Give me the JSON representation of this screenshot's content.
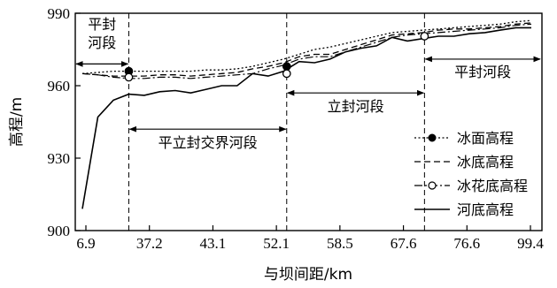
{
  "chart_data": {
    "type": "line",
    "ylabel": "高程/m",
    "xlabel": "与坝间距/km",
    "x_tick_labels": [
      "6.9",
      "37.2",
      "43.1",
      "52.1",
      "58.5",
      "67.6",
      "76.6",
      "99.4"
    ],
    "y_ticks": [
      900,
      930,
      960,
      990
    ],
    "ylim": [
      900,
      990
    ],
    "xlim": [
      0,
      29
    ],
    "grid": false,
    "legend_position": "right",
    "x": [
      0,
      1,
      2,
      3,
      4,
      5,
      6,
      7,
      8,
      9,
      10,
      11,
      12,
      13,
      14,
      15,
      16,
      17,
      18,
      19,
      20,
      21,
      22,
      23,
      24,
      25,
      26,
      27,
      28,
      29
    ],
    "series": [
      {
        "name": "冰面高程",
        "style": "dotted-filled-circle",
        "values": [
          965,
          965.5,
          966,
          966,
          966,
          966,
          966,
          966,
          966.5,
          966.5,
          967,
          968,
          969.5,
          971,
          973,
          975,
          976,
          977.5,
          979,
          980.5,
          982,
          982.5,
          983,
          983.5,
          984,
          984.5,
          985,
          985.5,
          986.5,
          987
        ]
      },
      {
        "name": "冰底高程",
        "style": "dashed",
        "values": [
          965,
          964.5,
          964,
          964,
          964,
          964.5,
          964.5,
          964,
          964.5,
          965,
          965.5,
          967,
          968,
          969.5,
          972,
          973,
          973,
          975,
          977,
          979,
          981,
          981.5,
          982,
          983,
          983.5,
          983.5,
          984,
          984.5,
          985.5,
          986
        ]
      },
      {
        "name": "冰花底高程",
        "style": "dashdot-open-circle",
        "values": [
          965,
          964.5,
          963.5,
          963,
          963,
          963.5,
          963.5,
          963,
          963.5,
          964,
          964.5,
          965,
          967,
          968.5,
          971,
          972,
          972,
          974,
          976,
          978,
          980,
          981,
          981.5,
          982,
          982.5,
          983,
          983.5,
          984,
          985,
          985.5
        ]
      },
      {
        "name": "河底高程",
        "style": "solid",
        "values": [
          909,
          947,
          954,
          956.5,
          956,
          957.5,
          958,
          957,
          958.5,
          960,
          960,
          965,
          964,
          966,
          970,
          969.5,
          971,
          974,
          975.5,
          976.5,
          980,
          978.5,
          979.5,
          980.5,
          980.5,
          981.5,
          982,
          983,
          984,
          984
        ]
      }
    ],
    "section_boundaries_x": [
      3,
      13.2,
      22.1
    ],
    "highlight_markers": [
      {
        "series": "冰面高程",
        "x": 3,
        "y": 966
      },
      {
        "series": "冰面高程",
        "x": 13.2,
        "y": 968
      },
      {
        "series": "冰花底高程",
        "x": 3,
        "y": 963.5
      },
      {
        "series": "冰花底高程",
        "x": 13.2,
        "y": 965
      },
      {
        "series": "冰花底高程",
        "x": 22.1,
        "y": 980.5
      }
    ],
    "annotations": [
      {
        "text": "平封",
        "from_x": 0,
        "to_x": 3,
        "y": 969
      },
      {
        "text": "河段",
        "from_x": 0,
        "to_x": 3,
        "y": 969
      },
      {
        "text": "平封河段",
        "from_x": 22.1,
        "to_x": 29,
        "y": 971
      },
      {
        "text": "立封河段",
        "from_x": 13.2,
        "to_x": 22.1,
        "y": 957
      },
      {
        "text": "平立封交界河段",
        "from_x": 3,
        "to_x": 13.2,
        "y": 942
      }
    ]
  }
}
